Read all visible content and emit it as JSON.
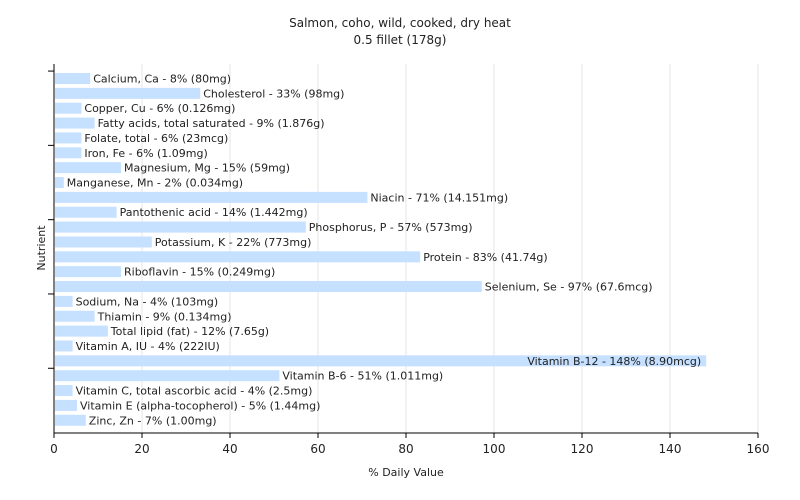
{
  "chart_data": {
    "type": "bar",
    "orientation": "horizontal",
    "title": "Salmon, coho, wild, cooked, dry heat",
    "subtitle": "0.5 fillet (178g)",
    "xlabel": "% Daily Value",
    "ylabel": "Nutrient",
    "xlim": [
      0,
      160
    ],
    "xticks": [
      0,
      20,
      40,
      60,
      80,
      100,
      120,
      140,
      160
    ],
    "grid": true,
    "bar_color": "#c6e0ff",
    "categories": [
      "Calcium, Ca",
      "Cholesterol",
      "Copper, Cu",
      "Fatty acids, total saturated",
      "Folate, total",
      "Iron, Fe",
      "Magnesium, Mg",
      "Manganese, Mn",
      "Niacin",
      "Pantothenic acid",
      "Phosphorus, P",
      "Potassium, K",
      "Protein",
      "Riboflavin",
      "Selenium, Se",
      "Sodium, Na",
      "Thiamin",
      "Total lipid (fat)",
      "Vitamin A, IU",
      "Vitamin B-12",
      "Vitamin B-6",
      "Vitamin C, total ascorbic acid",
      "Vitamin E (alpha-tocopherol)",
      "Zinc, Zn"
    ],
    "values": [
      8,
      33,
      6,
      9,
      6,
      6,
      15,
      2,
      71,
      14,
      57,
      22,
      83,
      15,
      97,
      4,
      9,
      12,
      4,
      148,
      51,
      4,
      5,
      7
    ],
    "labels": [
      "Calcium, Ca - 8% (80mg)",
      "Cholesterol - 33% (98mg)",
      "Copper, Cu - 6% (0.126mg)",
      "Fatty acids, total saturated - 9% (1.876g)",
      "Folate, total - 6% (23mcg)",
      "Iron, Fe - 6% (1.09mg)",
      "Magnesium, Mg - 15% (59mg)",
      "Manganese, Mn - 2% (0.034mg)",
      "Niacin - 71% (14.151mg)",
      "Pantothenic acid - 14% (1.442mg)",
      "Phosphorus, P - 57% (573mg)",
      "Potassium, K - 22% (773mg)",
      "Protein - 83% (41.74g)",
      "Riboflavin - 15% (0.249mg)",
      "Selenium, Se - 97% (67.6mcg)",
      "Sodium, Na - 4% (103mg)",
      "Thiamin - 9% (0.134mg)",
      "Total lipid (fat) - 12% (7.65g)",
      "Vitamin A, IU - 4% (222IU)",
      "Vitamin B-12 - 148% (8.90mcg)",
      "Vitamin B-6 - 51% (1.011mg)",
      "Vitamin C, total ascorbic acid - 4% (2.5mg)",
      "Vitamin E (alpha-tocopherol) - 5% (1.44mg)",
      "Zinc, Zn - 7% (1.00mg)"
    ]
  }
}
